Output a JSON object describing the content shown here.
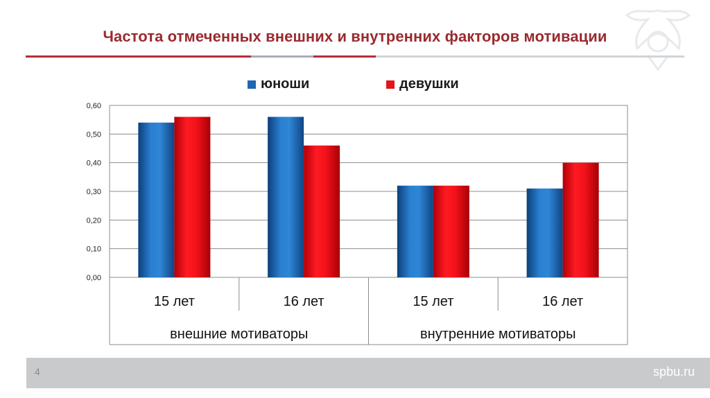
{
  "title": "Частота отмеченных внешних и внутренних факторов мотивации",
  "footer": {
    "page_number": "4",
    "site": "spbu.ru"
  },
  "colors": {
    "title": "#9a2a2f",
    "series_blue": "#1f66b3",
    "series_red": "#e3141b",
    "footer": "#c9cacc"
  },
  "chart_data": {
    "type": "bar",
    "title": "",
    "xlabel": "",
    "ylabel": "",
    "ylim": [
      0,
      0.6
    ],
    "yticks": [
      "0,00",
      "0,10",
      "0,20",
      "0,30",
      "0,40",
      "0,50",
      "0,60"
    ],
    "grid": true,
    "legend_position": "top",
    "groups": [
      {
        "label": "внешние мотиваторы",
        "categories": [
          "15 лет",
          "16 лет"
        ]
      },
      {
        "label": "внутренние мотиваторы",
        "categories": [
          "15 лет",
          "16 лет"
        ]
      }
    ],
    "categories": [
      "15 лет",
      "16 лет",
      "15 лет",
      "16 лет"
    ],
    "series": [
      {
        "name": "юноши",
        "color": "#1f66b3",
        "values": [
          0.54,
          0.56,
          0.32,
          0.31
        ]
      },
      {
        "name": "девушки",
        "color": "#e3141b",
        "values": [
          0.56,
          0.46,
          0.32,
          0.4
        ]
      }
    ]
  }
}
